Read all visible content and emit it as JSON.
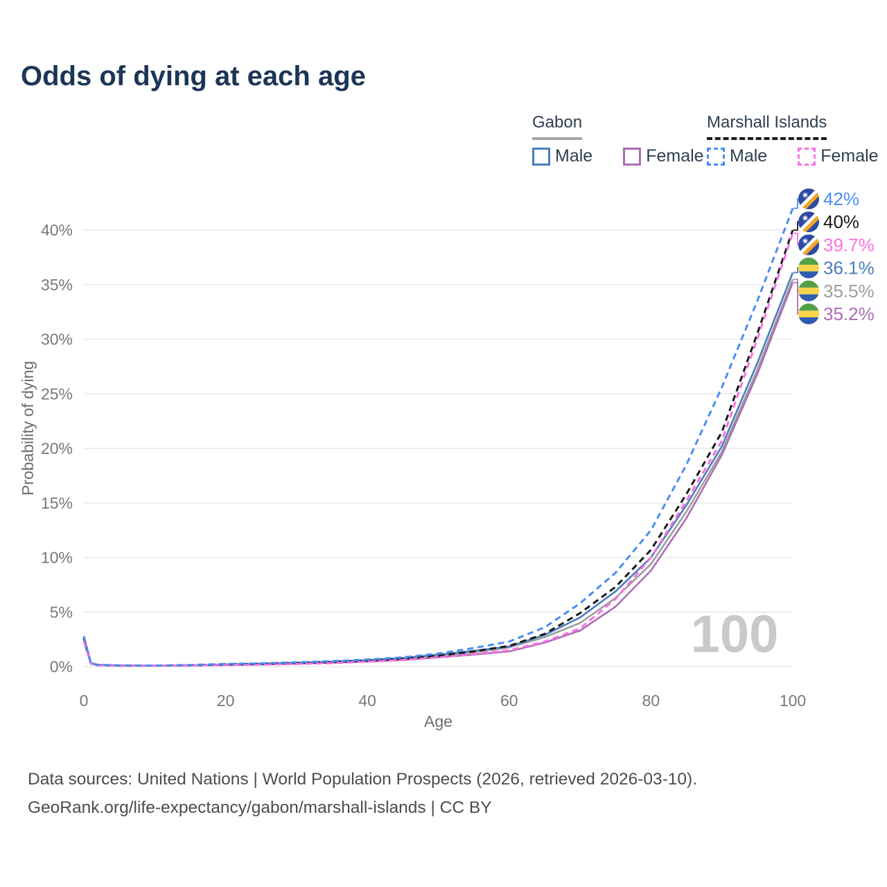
{
  "title": "Odds of dying at each age",
  "legend": {
    "groups": [
      {
        "name": "Gabon",
        "line_style": "solid",
        "underline_color": "#a6a6a6",
        "items": [
          {
            "label": "Male",
            "color": "#4a7dbd"
          },
          {
            "label": "Female",
            "color": "#ad6cb5"
          }
        ]
      },
      {
        "name": "Marshall Islands",
        "line_style": "dashed",
        "underline_color": "#1a1a1a",
        "items": [
          {
            "label": "Male",
            "color": "#4a8cf2"
          },
          {
            "label": "Female",
            "color": "#fa70e3"
          }
        ]
      }
    ]
  },
  "chart_data": {
    "type": "line",
    "title": "Odds of dying at each age",
    "xlabel": "Age",
    "ylabel": "Probability of dying",
    "xlim": [
      0,
      100
    ],
    "ylim": [
      0,
      44
    ],
    "x_ticks": [
      0,
      20,
      40,
      60,
      80,
      100
    ],
    "y_ticks": [
      0,
      5,
      10,
      15,
      20,
      25,
      30,
      35,
      40
    ],
    "y_tick_suffix": "%",
    "grid": "horizontal-only",
    "legend_position": "top-right",
    "watermark": "100",
    "ages": [
      0,
      1,
      2,
      5,
      10,
      15,
      20,
      25,
      30,
      35,
      40,
      45,
      50,
      55,
      60,
      65,
      70,
      75,
      80,
      85,
      90,
      95,
      100
    ],
    "series": [
      {
        "name": "Marshall Islands Male",
        "country": "Marshall Islands",
        "sex": "Male",
        "flag": "marshall-islands",
        "color": "#4a8cf2",
        "dash": true,
        "end_label": "42%",
        "values": [
          2.8,
          0.3,
          0.15,
          0.1,
          0.1,
          0.15,
          0.25,
          0.3,
          0.4,
          0.5,
          0.65,
          0.85,
          1.2,
          1.7,
          2.3,
          3.6,
          5.8,
          8.6,
          12.5,
          18.5,
          25.6,
          33.5,
          42
        ]
      },
      {
        "name": "Marshall Islands Both sexes",
        "country": "Marshall Islands",
        "sex": "Both",
        "flag": "marshall-islands",
        "color": "#1a1a1a",
        "dash": true,
        "end_label": "40%",
        "values": [
          2.6,
          0.28,
          0.13,
          0.09,
          0.09,
          0.13,
          0.2,
          0.25,
          0.33,
          0.42,
          0.55,
          0.72,
          1.0,
          1.4,
          1.9,
          3.0,
          4.9,
          7.3,
          10.7,
          15.8,
          21.5,
          30.5,
          40
        ]
      },
      {
        "name": "Marshall Islands Female",
        "country": "Marshall Islands",
        "sex": "Female",
        "flag": "marshall-islands",
        "color": "#fa70e3",
        "dash": true,
        "end_label": "39.7%",
        "values": [
          2.4,
          0.26,
          0.12,
          0.08,
          0.08,
          0.11,
          0.15,
          0.18,
          0.24,
          0.32,
          0.45,
          0.6,
          0.85,
          1.15,
          1.5,
          2.3,
          3.5,
          6.2,
          10.0,
          15.2,
          20.7,
          30.0,
          39.7
        ]
      },
      {
        "name": "Gabon Male",
        "country": "Gabon",
        "sex": "Male",
        "flag": "gabon",
        "color": "#4a7dbd",
        "dash": false,
        "end_label": "36.1%",
        "values": [
          2.7,
          0.35,
          0.18,
          0.12,
          0.1,
          0.13,
          0.2,
          0.28,
          0.36,
          0.46,
          0.6,
          0.8,
          1.1,
          1.45,
          1.85,
          2.9,
          4.5,
          6.9,
          10.0,
          14.8,
          20.2,
          27.8,
          36.1
        ]
      },
      {
        "name": "Gabon Both sexes",
        "country": "Gabon",
        "sex": "Both",
        "flag": "gabon",
        "color": "#9e9e9e",
        "dash": false,
        "end_label": "35.5%",
        "values": [
          2.5,
          0.32,
          0.16,
          0.11,
          0.09,
          0.12,
          0.18,
          0.25,
          0.32,
          0.41,
          0.54,
          0.72,
          1.0,
          1.3,
          1.75,
          2.7,
          4.0,
          6.3,
          9.4,
          14.2,
          19.7,
          27.2,
          35.5
        ]
      },
      {
        "name": "Gabon Female",
        "country": "Gabon",
        "sex": "Female",
        "flag": "gabon",
        "color": "#ad6cb5",
        "dash": false,
        "end_label": "35.2%",
        "values": [
          2.3,
          0.3,
          0.15,
          0.1,
          0.08,
          0.1,
          0.14,
          0.2,
          0.27,
          0.35,
          0.46,
          0.6,
          0.85,
          1.1,
          1.4,
          2.2,
          3.3,
          5.5,
          8.8,
          13.6,
          19.4,
          26.8,
          35.2
        ]
      }
    ]
  },
  "watermark": "100",
  "footer": {
    "line1": "Data sources: United Nations | World Population Prospects (2026, retrieved 2026-03-10).",
    "line2": "GeoRank.org/life-expectancy/gabon/marshall-islands | CC BY"
  }
}
